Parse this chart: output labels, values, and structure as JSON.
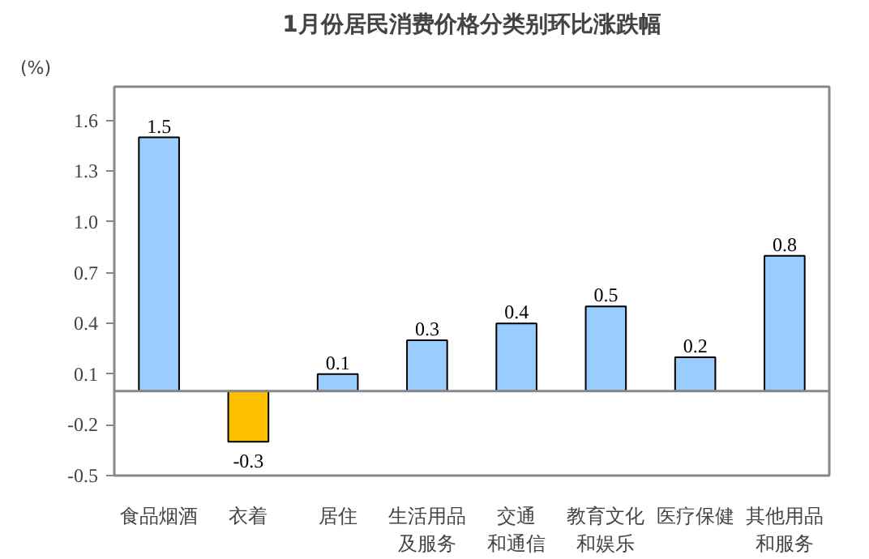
{
  "chart_data": {
    "type": "bar",
    "title": "1月份居民消费价格分类别环比涨跌幅",
    "ylabel": "(%)",
    "categories": [
      "食品烟酒",
      "衣着",
      "居住",
      "生活用品及服务",
      "交通和通信",
      "教育文化和娱乐",
      "医疗保健",
      "其他用品和服务"
    ],
    "values": [
      1.5,
      -0.3,
      0.1,
      0.3,
      0.4,
      0.5,
      0.2,
      0.8
    ],
    "colors": [
      "#99ccff",
      "#ffc000",
      "#99ccff",
      "#99ccff",
      "#99ccff",
      "#99ccff",
      "#99ccff",
      "#99ccff"
    ],
    "ylim": [
      -0.5,
      1.8
    ],
    "yticks": [
      {
        "value": -0.5,
        "label": "-0.5"
      },
      {
        "value": -0.2,
        "label": "-0.2"
      },
      {
        "value": 0.1,
        "label": "0.1"
      },
      {
        "value": 0.4,
        "label": "0.4"
      },
      {
        "value": 0.7,
        "label": "0.7"
      },
      {
        "value": 1.0,
        "label": "1.0"
      },
      {
        "value": 1.3,
        "label": "1.3"
      },
      {
        "value": 1.6,
        "label": "1.6"
      }
    ],
    "data_labels": true,
    "grid": false
  }
}
